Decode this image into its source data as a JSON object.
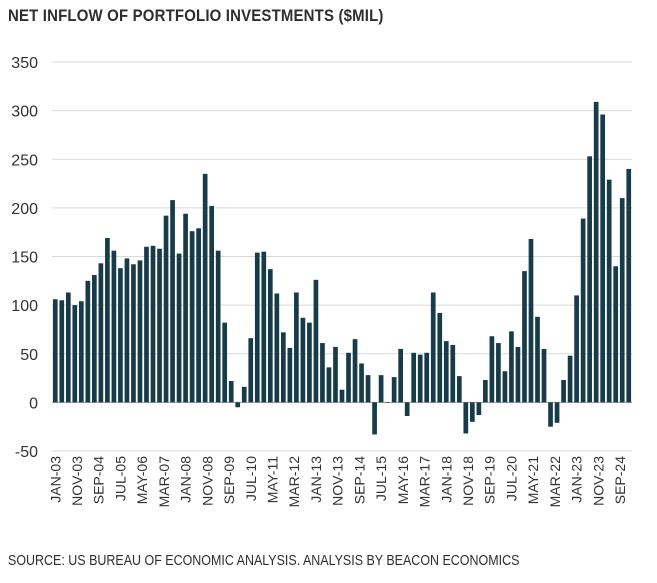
{
  "chart_data": {
    "type": "bar",
    "title": "NET INFLOW OF PORTFOLIO INVESTMENTS ($MIL)",
    "source": "SOURCE: US BUREAU OF ECONOMIC ANALYSIS. ANALYSIS BY BEACON ECONOMICS",
    "xlabel": "",
    "ylabel": "",
    "ylim": [
      -50,
      350
    ],
    "yticks": [
      -50,
      0,
      50,
      100,
      150,
      200,
      250,
      300,
      350
    ],
    "grid": "horizontal",
    "bar_color": "#183b49",
    "x_tick_labels": [
      "JAN-03",
      "NOV-03",
      "SEP-04",
      "JUL-05",
      "MAY-06",
      "MAR-07",
      "JAN-08",
      "NOV-08",
      "SEP-09",
      "JUL-10",
      "MAY-11",
      "MAR-12",
      "JAN-13",
      "NOV-13",
      "SEP-14",
      "JUL-15",
      "MAY-16",
      "MAR-17",
      "JAN-18",
      "NOV-18",
      "SEP-19",
      "JUL-20",
      "MAY-21",
      "MAR-22",
      "JAN-23",
      "NOV-23",
      "SEP-24"
    ],
    "values": [
      106,
      105,
      113,
      100,
      104,
      125,
      131,
      143,
      169,
      156,
      138,
      148,
      142,
      146,
      160,
      161,
      158,
      192,
      208,
      153,
      194,
      176,
      179,
      235,
      202,
      156,
      82,
      22,
      -5,
      16,
      66,
      154,
      155,
      137,
      112,
      72,
      56,
      113,
      87,
      82,
      126,
      61,
      36,
      57,
      13,
      51,
      65,
      40,
      28,
      -33,
      28,
      0,
      26,
      55,
      -14,
      51,
      49,
      51,
      113,
      92,
      63,
      59,
      27,
      -32,
      -20,
      -13,
      23,
      68,
      61,
      32,
      73,
      57,
      135,
      168,
      88,
      55,
      -25,
      -21,
      23,
      48,
      110,
      189,
      253,
      309,
      296,
      229,
      140,
      210,
      240
    ]
  }
}
